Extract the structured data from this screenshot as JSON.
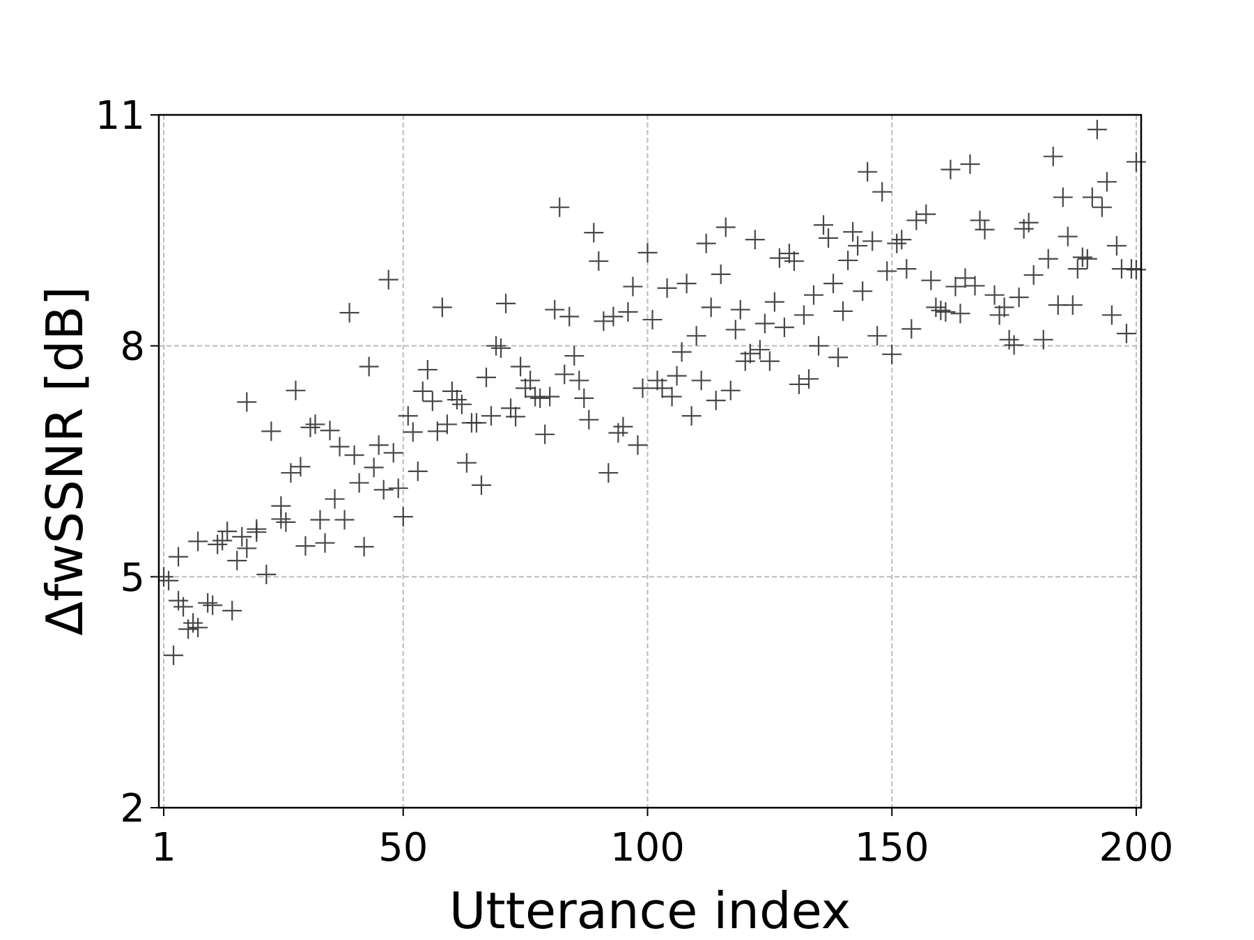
{
  "chart_data": {
    "type": "scatter",
    "xlabel": "Utterance index",
    "ylabel": "ΔfwSSNR [dB]",
    "color": "#333333",
    "marker": "+",
    "grid": true,
    "xlim": [
      0,
      201
    ],
    "ylim": [
      2,
      11
    ],
    "xticks": [
      1,
      50,
      100,
      150,
      200
    ],
    "yticks": [
      2,
      5,
      8,
      11
    ],
    "x": [
      1,
      2,
      3,
      4,
      4,
      5,
      6,
      7,
      8,
      8,
      10,
      11,
      12,
      13,
      14,
      15,
      16,
      17,
      18,
      18,
      20,
      20,
      22,
      23,
      25,
      25,
      26,
      27,
      28,
      29,
      30,
      31,
      32,
      33,
      34,
      35,
      36,
      37,
      38,
      39,
      40,
      41,
      42,
      43,
      44,
      45,
      46,
      47,
      48,
      49,
      50,
      51,
      52,
      53,
      54,
      55,
      56,
      57,
      58,
      59,
      60,
      61,
      62,
      63,
      64,
      65,
      66,
      67,
      68,
      69,
      70,
      71,
      72,
      73,
      74,
      75,
      76,
      77,
      78,
      79,
      80,
      81,
      82,
      83,
      84,
      85,
      86,
      87,
      88,
      89,
      90,
      91,
      92,
      93,
      94,
      95,
      96,
      97,
      98,
      99,
      100,
      101,
      102,
      103,
      104,
      105,
      106,
      107,
      108,
      109,
      110,
      111,
      112,
      113,
      114,
      115,
      116,
      117,
      118,
      119,
      120,
      121,
      122,
      123,
      124,
      125,
      126,
      127,
      128,
      129,
      130,
      131,
      132,
      133,
      134,
      135,
      136,
      137,
      138,
      139,
      140,
      141,
      142,
      143,
      144,
      145,
      146,
      147,
      148,
      149,
      150,
      151,
      152,
      153,
      154,
      155,
      157,
      158,
      159,
      160,
      161,
      162,
      163,
      164,
      165,
      166,
      167,
      168,
      169,
      171,
      172,
      173,
      174,
      175,
      176,
      177,
      178,
      179,
      181,
      182,
      183,
      184,
      185,
      186,
      187,
      188,
      189,
      190,
      191,
      192,
      193,
      194,
      195,
      196,
      197,
      198,
      199,
      200,
      200
    ],
    "values": [
      5.0,
      4.95,
      3.98,
      5.26,
      4.69,
      4.61,
      4.32,
      4.4,
      4.34,
      5.46,
      4.66,
      4.63,
      5.42,
      5.47,
      5.59,
      4.56,
      5.21,
      5.52,
      7.27,
      5.37,
      5.58,
      5.62,
      5.03,
      6.89,
      5.75,
      5.92,
      5.71,
      6.35,
      7.42,
      6.43,
      5.4,
      6.94,
      6.98,
      5.74,
      5.44,
      6.9,
      6.01,
      6.69,
      5.74,
      8.43,
      6.58,
      6.22,
      5.39,
      7.73,
      6.42,
      6.71,
      6.13,
      8.86,
      6.61,
      6.15,
      5.78,
      7.09,
      6.88,
      6.37,
      7.41,
      7.69,
      7.28,
      6.89,
      8.5,
      6.98,
      7.41,
      7.3,
      7.24,
      6.48,
      7.0,
      7.0,
      6.19,
      7.59,
      7.09,
      8.0,
      7.97,
      8.55,
      7.19,
      7.08,
      7.73,
      7.45,
      7.55,
      7.34,
      7.32,
      6.85,
      7.34,
      8.47,
      9.8,
      7.63,
      8.38,
      7.87,
      7.55,
      7.32,
      7.04,
      9.47,
      9.1,
      8.32,
      6.35,
      8.38,
      6.87,
      6.95,
      8.44,
      8.77,
      6.71,
      7.45,
      9.21,
      8.34,
      7.55,
      7.45,
      8.75,
      7.34,
      7.61,
      7.92,
      8.81,
      7.09,
      8.13,
      7.55,
      9.33,
      8.5,
      7.29,
      8.93,
      9.54,
      7.42,
      8.21,
      8.47,
      7.8,
      7.9,
      9.38,
      7.95,
      8.29,
      7.8,
      8.57,
      9.14,
      8.24,
      9.2,
      9.1,
      7.5,
      8.4,
      7.57,
      8.66,
      8.0,
      9.57,
      9.4,
      8.81,
      7.85,
      8.45,
      9.11,
      9.48,
      9.3,
      8.71,
      10.26,
      9.36,
      8.13,
      10.0,
      8.97,
      7.89,
      9.33,
      9.38,
      9.0,
      8.22,
      9.63,
      9.71,
      8.85,
      8.5,
      8.46,
      8.44,
      10.29,
      8.77,
      8.42,
      8.88,
      10.36,
      8.78,
      9.63,
      9.51,
      8.66,
      8.4,
      8.5,
      8.08,
      8.01,
      8.63,
      9.52,
      9.6,
      8.92,
      8.08,
      9.13,
      10.46,
      8.53,
      9.93,
      9.42,
      8.53,
      9.0,
      9.15,
      9.13,
      9.93,
      10.81,
      9.8,
      10.13,
      8.4,
      9.3,
      9.0,
      8.16,
      9.0,
      10.39,
      8.99
    ]
  }
}
